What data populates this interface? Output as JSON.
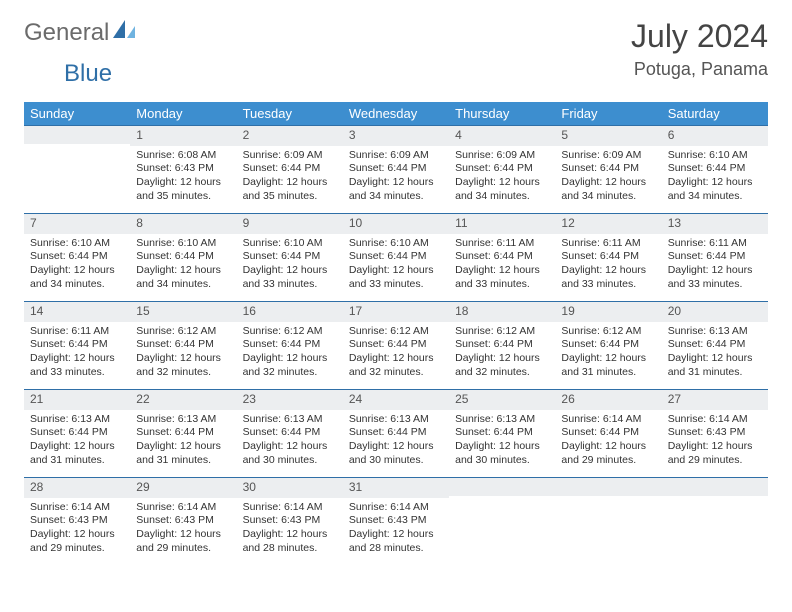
{
  "logo": {
    "text1": "General",
    "text2": "Blue"
  },
  "title": "July 2024",
  "location": "Potuga, Panama",
  "colors": {
    "header_bg": "#3d8ecf",
    "header_text": "#ffffff",
    "daynum_bg": "#eceef0",
    "daynum_border": "#2f6fa7",
    "body_text": "#333333",
    "page_bg": "#ffffff"
  },
  "weekdays": [
    "Sunday",
    "Monday",
    "Tuesday",
    "Wednesday",
    "Thursday",
    "Friday",
    "Saturday"
  ],
  "weeks": [
    [
      {
        "n": "",
        "sr": "",
        "ss": "",
        "dl": ""
      },
      {
        "n": "1",
        "sr": "Sunrise: 6:08 AM",
        "ss": "Sunset: 6:43 PM",
        "dl": "Daylight: 12 hours and 35 minutes."
      },
      {
        "n": "2",
        "sr": "Sunrise: 6:09 AM",
        "ss": "Sunset: 6:44 PM",
        "dl": "Daylight: 12 hours and 35 minutes."
      },
      {
        "n": "3",
        "sr": "Sunrise: 6:09 AM",
        "ss": "Sunset: 6:44 PM",
        "dl": "Daylight: 12 hours and 34 minutes."
      },
      {
        "n": "4",
        "sr": "Sunrise: 6:09 AM",
        "ss": "Sunset: 6:44 PM",
        "dl": "Daylight: 12 hours and 34 minutes."
      },
      {
        "n": "5",
        "sr": "Sunrise: 6:09 AM",
        "ss": "Sunset: 6:44 PM",
        "dl": "Daylight: 12 hours and 34 minutes."
      },
      {
        "n": "6",
        "sr": "Sunrise: 6:10 AM",
        "ss": "Sunset: 6:44 PM",
        "dl": "Daylight: 12 hours and 34 minutes."
      }
    ],
    [
      {
        "n": "7",
        "sr": "Sunrise: 6:10 AM",
        "ss": "Sunset: 6:44 PM",
        "dl": "Daylight: 12 hours and 34 minutes."
      },
      {
        "n": "8",
        "sr": "Sunrise: 6:10 AM",
        "ss": "Sunset: 6:44 PM",
        "dl": "Daylight: 12 hours and 34 minutes."
      },
      {
        "n": "9",
        "sr": "Sunrise: 6:10 AM",
        "ss": "Sunset: 6:44 PM",
        "dl": "Daylight: 12 hours and 33 minutes."
      },
      {
        "n": "10",
        "sr": "Sunrise: 6:10 AM",
        "ss": "Sunset: 6:44 PM",
        "dl": "Daylight: 12 hours and 33 minutes."
      },
      {
        "n": "11",
        "sr": "Sunrise: 6:11 AM",
        "ss": "Sunset: 6:44 PM",
        "dl": "Daylight: 12 hours and 33 minutes."
      },
      {
        "n": "12",
        "sr": "Sunrise: 6:11 AM",
        "ss": "Sunset: 6:44 PM",
        "dl": "Daylight: 12 hours and 33 minutes."
      },
      {
        "n": "13",
        "sr": "Sunrise: 6:11 AM",
        "ss": "Sunset: 6:44 PM",
        "dl": "Daylight: 12 hours and 33 minutes."
      }
    ],
    [
      {
        "n": "14",
        "sr": "Sunrise: 6:11 AM",
        "ss": "Sunset: 6:44 PM",
        "dl": "Daylight: 12 hours and 33 minutes."
      },
      {
        "n": "15",
        "sr": "Sunrise: 6:12 AM",
        "ss": "Sunset: 6:44 PM",
        "dl": "Daylight: 12 hours and 32 minutes."
      },
      {
        "n": "16",
        "sr": "Sunrise: 6:12 AM",
        "ss": "Sunset: 6:44 PM",
        "dl": "Daylight: 12 hours and 32 minutes."
      },
      {
        "n": "17",
        "sr": "Sunrise: 6:12 AM",
        "ss": "Sunset: 6:44 PM",
        "dl": "Daylight: 12 hours and 32 minutes."
      },
      {
        "n": "18",
        "sr": "Sunrise: 6:12 AM",
        "ss": "Sunset: 6:44 PM",
        "dl": "Daylight: 12 hours and 32 minutes."
      },
      {
        "n": "19",
        "sr": "Sunrise: 6:12 AM",
        "ss": "Sunset: 6:44 PM",
        "dl": "Daylight: 12 hours and 31 minutes."
      },
      {
        "n": "20",
        "sr": "Sunrise: 6:13 AM",
        "ss": "Sunset: 6:44 PM",
        "dl": "Daylight: 12 hours and 31 minutes."
      }
    ],
    [
      {
        "n": "21",
        "sr": "Sunrise: 6:13 AM",
        "ss": "Sunset: 6:44 PM",
        "dl": "Daylight: 12 hours and 31 minutes."
      },
      {
        "n": "22",
        "sr": "Sunrise: 6:13 AM",
        "ss": "Sunset: 6:44 PM",
        "dl": "Daylight: 12 hours and 31 minutes."
      },
      {
        "n": "23",
        "sr": "Sunrise: 6:13 AM",
        "ss": "Sunset: 6:44 PM",
        "dl": "Daylight: 12 hours and 30 minutes."
      },
      {
        "n": "24",
        "sr": "Sunrise: 6:13 AM",
        "ss": "Sunset: 6:44 PM",
        "dl": "Daylight: 12 hours and 30 minutes."
      },
      {
        "n": "25",
        "sr": "Sunrise: 6:13 AM",
        "ss": "Sunset: 6:44 PM",
        "dl": "Daylight: 12 hours and 30 minutes."
      },
      {
        "n": "26",
        "sr": "Sunrise: 6:14 AM",
        "ss": "Sunset: 6:44 PM",
        "dl": "Daylight: 12 hours and 29 minutes."
      },
      {
        "n": "27",
        "sr": "Sunrise: 6:14 AM",
        "ss": "Sunset: 6:43 PM",
        "dl": "Daylight: 12 hours and 29 minutes."
      }
    ],
    [
      {
        "n": "28",
        "sr": "Sunrise: 6:14 AM",
        "ss": "Sunset: 6:43 PM",
        "dl": "Daylight: 12 hours and 29 minutes."
      },
      {
        "n": "29",
        "sr": "Sunrise: 6:14 AM",
        "ss": "Sunset: 6:43 PM",
        "dl": "Daylight: 12 hours and 29 minutes."
      },
      {
        "n": "30",
        "sr": "Sunrise: 6:14 AM",
        "ss": "Sunset: 6:43 PM",
        "dl": "Daylight: 12 hours and 28 minutes."
      },
      {
        "n": "31",
        "sr": "Sunrise: 6:14 AM",
        "ss": "Sunset: 6:43 PM",
        "dl": "Daylight: 12 hours and 28 minutes."
      },
      {
        "n": "",
        "sr": "",
        "ss": "",
        "dl": ""
      },
      {
        "n": "",
        "sr": "",
        "ss": "",
        "dl": ""
      },
      {
        "n": "",
        "sr": "",
        "ss": "",
        "dl": ""
      }
    ]
  ]
}
